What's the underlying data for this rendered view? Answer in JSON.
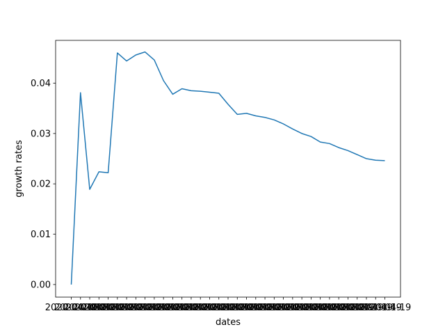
{
  "chart_data": {
    "type": "line",
    "xlabel": "dates",
    "ylabel": "growth rates",
    "x_tick_label": "2020-04-19",
    "x_tick_count": 35,
    "ylim": [
      -0.0025,
      0.0485
    ],
    "yticks": [
      0.0,
      0.01,
      0.02,
      0.03,
      0.04
    ],
    "ytick_labels": [
      "0.00",
      "0.01",
      "0.02",
      "0.03",
      "0.04"
    ],
    "grid": false,
    "series": [
      {
        "color": "#1f77b4",
        "values": [
          0.0,
          0.0381,
          0.0189,
          0.0224,
          0.0222,
          0.046,
          0.0444,
          0.0456,
          0.0462,
          0.0446,
          0.0405,
          0.0378,
          0.0389,
          0.0385,
          0.0384,
          0.0382,
          0.038,
          0.0358,
          0.0338,
          0.034,
          0.0335,
          0.0332,
          0.0327,
          0.0319,
          0.0309,
          0.03,
          0.0294,
          0.0283,
          0.028,
          0.0272,
          0.0266,
          0.0258,
          0.025,
          0.0247,
          0.0246
        ]
      }
    ]
  }
}
